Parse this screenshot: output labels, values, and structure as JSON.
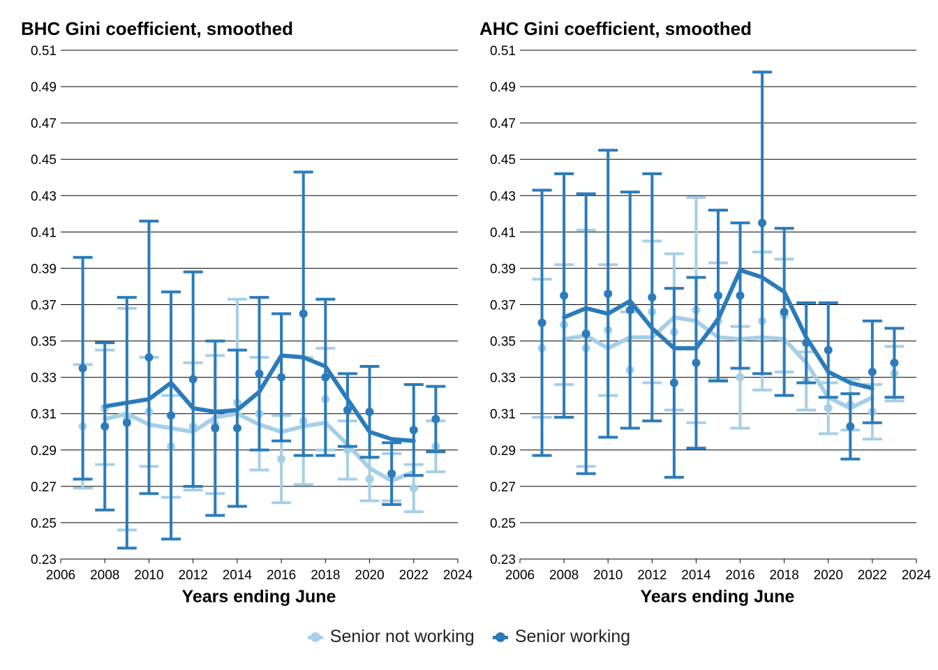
{
  "chart_data": [
    {
      "type": "line",
      "title": "BHC Gini coefficient, smoothed",
      "xlabel": "Years ending June",
      "ylabel": "",
      "xlim": [
        2006,
        2024
      ],
      "ylim": [
        0.23,
        0.51
      ],
      "xticks": [
        "2006",
        "2008",
        "2010",
        "2012",
        "2014",
        "2016",
        "2018",
        "2020",
        "2022",
        "2024"
      ],
      "yticks": [
        "0.23",
        "0.25",
        "0.27",
        "0.29",
        "0.31",
        "0.33",
        "0.35",
        "0.37",
        "0.39",
        "0.41",
        "0.43",
        "0.45",
        "0.47",
        "0.49",
        "0.51"
      ],
      "grid": "horizontal",
      "series": [
        {
          "name": "Senior not working",
          "color": "#a6cfe5",
          "points": [
            {
              "x": 2007,
              "y": 0.303,
              "lo": 0.269,
              "hi": 0.337
            },
            {
              "x": 2008,
              "y": 0.313,
              "lo": 0.282,
              "hi": 0.345
            },
            {
              "x": 2009,
              "y": 0.307,
              "lo": 0.246,
              "hi": 0.368
            },
            {
              "x": 2010,
              "y": 0.311,
              "lo": 0.281,
              "hi": 0.341
            },
            {
              "x": 2011,
              "y": 0.292,
              "lo": 0.264,
              "hi": 0.32
            },
            {
              "x": 2012,
              "y": 0.303,
              "lo": 0.268,
              "hi": 0.338
            },
            {
              "x": 2013,
              "y": 0.304,
              "lo": 0.266,
              "hi": 0.342
            },
            {
              "x": 2014,
              "y": 0.316,
              "lo": 0.259,
              "hi": 0.373
            },
            {
              "x": 2015,
              "y": 0.31,
              "lo": 0.279,
              "hi": 0.341
            },
            {
              "x": 2016,
              "y": 0.285,
              "lo": 0.261,
              "hi": 0.309
            },
            {
              "x": 2017,
              "y": 0.306,
              "lo": 0.271,
              "hi": 0.341
            },
            {
              "x": 2018,
              "y": 0.318,
              "lo": 0.29,
              "hi": 0.346
            },
            {
              "x": 2019,
              "y": 0.29,
              "lo": 0.274,
              "hi": 0.306
            },
            {
              "x": 2020,
              "y": 0.274,
              "lo": 0.262,
              "hi": 0.286
            },
            {
              "x": 2021,
              "y": 0.275,
              "lo": 0.262,
              "hi": 0.288
            },
            {
              "x": 2022,
              "y": 0.269,
              "lo": 0.256,
              "hi": 0.282
            },
            {
              "x": 2023,
              "y": 0.292,
              "lo": 0.278,
              "hi": 0.306
            }
          ],
          "smoothed": [
            {
              "x": 2008,
              "y": 0.307
            },
            {
              "x": 2009,
              "y": 0.31
            },
            {
              "x": 2010,
              "y": 0.304
            },
            {
              "x": 2011,
              "y": 0.302
            },
            {
              "x": 2012,
              "y": 0.3
            },
            {
              "x": 2013,
              "y": 0.308
            },
            {
              "x": 2014,
              "y": 0.31
            },
            {
              "x": 2015,
              "y": 0.304
            },
            {
              "x": 2016,
              "y": 0.3
            },
            {
              "x": 2017,
              "y": 0.303
            },
            {
              "x": 2018,
              "y": 0.305
            },
            {
              "x": 2019,
              "y": 0.293
            },
            {
              "x": 2020,
              "y": 0.28
            },
            {
              "x": 2021,
              "y": 0.273
            },
            {
              "x": 2022,
              "y": 0.278
            }
          ]
        },
        {
          "name": "Senior working",
          "color": "#2b7bba",
          "points": [
            {
              "x": 2007,
              "y": 0.335,
              "lo": 0.274,
              "hi": 0.396
            },
            {
              "x": 2008,
              "y": 0.303,
              "lo": 0.257,
              "hi": 0.349
            },
            {
              "x": 2009,
              "y": 0.305,
              "lo": 0.236,
              "hi": 0.374
            },
            {
              "x": 2010,
              "y": 0.341,
              "lo": 0.266,
              "hi": 0.416
            },
            {
              "x": 2011,
              "y": 0.309,
              "lo": 0.241,
              "hi": 0.377
            },
            {
              "x": 2012,
              "y": 0.329,
              "lo": 0.27,
              "hi": 0.388
            },
            {
              "x": 2013,
              "y": 0.302,
              "lo": 0.254,
              "hi": 0.35
            },
            {
              "x": 2014,
              "y": 0.302,
              "lo": 0.259,
              "hi": 0.345
            },
            {
              "x": 2015,
              "y": 0.332,
              "lo": 0.29,
              "hi": 0.374
            },
            {
              "x": 2016,
              "y": 0.33,
              "lo": 0.295,
              "hi": 0.365
            },
            {
              "x": 2017,
              "y": 0.365,
              "lo": 0.287,
              "hi": 0.443
            },
            {
              "x": 2018,
              "y": 0.33,
              "lo": 0.287,
              "hi": 0.373
            },
            {
              "x": 2019,
              "y": 0.312,
              "lo": 0.292,
              "hi": 0.332
            },
            {
              "x": 2020,
              "y": 0.311,
              "lo": 0.286,
              "hi": 0.336
            },
            {
              "x": 2021,
              "y": 0.277,
              "lo": 0.26,
              "hi": 0.294
            },
            {
              "x": 2022,
              "y": 0.301,
              "lo": 0.276,
              "hi": 0.326
            },
            {
              "x": 2023,
              "y": 0.307,
              "lo": 0.289,
              "hi": 0.325
            }
          ],
          "smoothed": [
            {
              "x": 2008,
              "y": 0.314
            },
            {
              "x": 2009,
              "y": 0.316
            },
            {
              "x": 2010,
              "y": 0.318
            },
            {
              "x": 2011,
              "y": 0.327
            },
            {
              "x": 2012,
              "y": 0.313
            },
            {
              "x": 2013,
              "y": 0.311
            },
            {
              "x": 2014,
              "y": 0.312
            },
            {
              "x": 2015,
              "y": 0.322
            },
            {
              "x": 2016,
              "y": 0.342
            },
            {
              "x": 2017,
              "y": 0.341
            },
            {
              "x": 2018,
              "y": 0.336
            },
            {
              "x": 2019,
              "y": 0.318
            },
            {
              "x": 2020,
              "y": 0.3
            },
            {
              "x": 2021,
              "y": 0.296
            },
            {
              "x": 2022,
              "y": 0.295
            }
          ]
        }
      ]
    },
    {
      "type": "line",
      "title": "AHC Gini coefficient, smoothed",
      "xlabel": "Years ending June",
      "ylabel": "",
      "xlim": [
        2006,
        2024
      ],
      "ylim": [
        0.23,
        0.51
      ],
      "xticks": [
        "2006",
        "2008",
        "2010",
        "2012",
        "2014",
        "2016",
        "2018",
        "2020",
        "2022",
        "2024"
      ],
      "yticks": [
        "0.23",
        "0.25",
        "0.27",
        "0.29",
        "0.31",
        "0.33",
        "0.35",
        "0.37",
        "0.39",
        "0.41",
        "0.43",
        "0.45",
        "0.47",
        "0.49",
        "0.51"
      ],
      "grid": "horizontal",
      "series": [
        {
          "name": "Senior not working",
          "color": "#a6cfe5",
          "points": [
            {
              "x": 2007,
              "y": 0.346,
              "lo": 0.308,
              "hi": 0.384
            },
            {
              "x": 2008,
              "y": 0.359,
              "lo": 0.326,
              "hi": 0.392
            },
            {
              "x": 2009,
              "y": 0.346,
              "lo": 0.281,
              "hi": 0.411
            },
            {
              "x": 2010,
              "y": 0.356,
              "lo": 0.32,
              "hi": 0.392
            },
            {
              "x": 2011,
              "y": 0.334,
              "lo": 0.302,
              "hi": 0.366
            },
            {
              "x": 2012,
              "y": 0.366,
              "lo": 0.327,
              "hi": 0.405
            },
            {
              "x": 2013,
              "y": 0.355,
              "lo": 0.312,
              "hi": 0.398
            },
            {
              "x": 2014,
              "y": 0.367,
              "lo": 0.305,
              "hi": 0.429
            },
            {
              "x": 2015,
              "y": 0.361,
              "lo": 0.329,
              "hi": 0.393
            },
            {
              "x": 2016,
              "y": 0.33,
              "lo": 0.302,
              "hi": 0.358
            },
            {
              "x": 2017,
              "y": 0.361,
              "lo": 0.323,
              "hi": 0.399
            },
            {
              "x": 2018,
              "y": 0.364,
              "lo": 0.333,
              "hi": 0.395
            },
            {
              "x": 2019,
              "y": 0.328,
              "lo": 0.312,
              "hi": 0.344
            },
            {
              "x": 2020,
              "y": 0.313,
              "lo": 0.299,
              "hi": 0.327
            },
            {
              "x": 2021,
              "y": 0.315,
              "lo": 0.301,
              "hi": 0.329
            },
            {
              "x": 2022,
              "y": 0.311,
              "lo": 0.296,
              "hi": 0.326
            },
            {
              "x": 2023,
              "y": 0.332,
              "lo": 0.317,
              "hi": 0.347
            }
          ],
          "smoothed": [
            {
              "x": 2008,
              "y": 0.351
            },
            {
              "x": 2009,
              "y": 0.353
            },
            {
              "x": 2010,
              "y": 0.346
            },
            {
              "x": 2011,
              "y": 0.352
            },
            {
              "x": 2012,
              "y": 0.352
            },
            {
              "x": 2013,
              "y": 0.363
            },
            {
              "x": 2014,
              "y": 0.361
            },
            {
              "x": 2015,
              "y": 0.352
            },
            {
              "x": 2016,
              "y": 0.351
            },
            {
              "x": 2017,
              "y": 0.352
            },
            {
              "x": 2018,
              "y": 0.351
            },
            {
              "x": 2019,
              "y": 0.338
            },
            {
              "x": 2020,
              "y": 0.319
            },
            {
              "x": 2021,
              "y": 0.313
            },
            {
              "x": 2022,
              "y": 0.319
            }
          ]
        },
        {
          "name": "Senior working",
          "color": "#2b7bba",
          "points": [
            {
              "x": 2007,
              "y": 0.36,
              "lo": 0.287,
              "hi": 0.433
            },
            {
              "x": 2008,
              "y": 0.375,
              "lo": 0.308,
              "hi": 0.442
            },
            {
              "x": 2009,
              "y": 0.354,
              "lo": 0.277,
              "hi": 0.431
            },
            {
              "x": 2010,
              "y": 0.376,
              "lo": 0.297,
              "hi": 0.455
            },
            {
              "x": 2011,
              "y": 0.367,
              "lo": 0.302,
              "hi": 0.432
            },
            {
              "x": 2012,
              "y": 0.374,
              "lo": 0.306,
              "hi": 0.442
            },
            {
              "x": 2013,
              "y": 0.327,
              "lo": 0.275,
              "hi": 0.379
            },
            {
              "x": 2014,
              "y": 0.338,
              "lo": 0.291,
              "hi": 0.385
            },
            {
              "x": 2015,
              "y": 0.375,
              "lo": 0.328,
              "hi": 0.422
            },
            {
              "x": 2016,
              "y": 0.375,
              "lo": 0.335,
              "hi": 0.415
            },
            {
              "x": 2017,
              "y": 0.415,
              "lo": 0.332,
              "hi": 0.498
            },
            {
              "x": 2018,
              "y": 0.366,
              "lo": 0.32,
              "hi": 0.412
            },
            {
              "x": 2019,
              "y": 0.349,
              "lo": 0.327,
              "hi": 0.371
            },
            {
              "x": 2020,
              "y": 0.345,
              "lo": 0.319,
              "hi": 0.371
            },
            {
              "x": 2021,
              "y": 0.303,
              "lo": 0.285,
              "hi": 0.321
            },
            {
              "x": 2022,
              "y": 0.333,
              "lo": 0.305,
              "hi": 0.361
            },
            {
              "x": 2023,
              "y": 0.338,
              "lo": 0.319,
              "hi": 0.357
            }
          ],
          "smoothed": [
            {
              "x": 2008,
              "y": 0.363
            },
            {
              "x": 2009,
              "y": 0.368
            },
            {
              "x": 2010,
              "y": 0.365
            },
            {
              "x": 2011,
              "y": 0.372
            },
            {
              "x": 2012,
              "y": 0.357
            },
            {
              "x": 2013,
              "y": 0.346
            },
            {
              "x": 2014,
              "y": 0.346
            },
            {
              "x": 2015,
              "y": 0.362
            },
            {
              "x": 2016,
              "y": 0.389
            },
            {
              "x": 2017,
              "y": 0.385
            },
            {
              "x": 2018,
              "y": 0.377
            },
            {
              "x": 2019,
              "y": 0.352
            },
            {
              "x": 2020,
              "y": 0.333
            },
            {
              "x": 2021,
              "y": 0.327
            },
            {
              "x": 2022,
              "y": 0.324
            }
          ]
        }
      ]
    }
  ],
  "legend": {
    "placement": "bottom-center",
    "items": [
      {
        "label": "Senior not working",
        "color": "#a6cfe5"
      },
      {
        "label": "Senior working",
        "color": "#2b7bba"
      }
    ]
  }
}
